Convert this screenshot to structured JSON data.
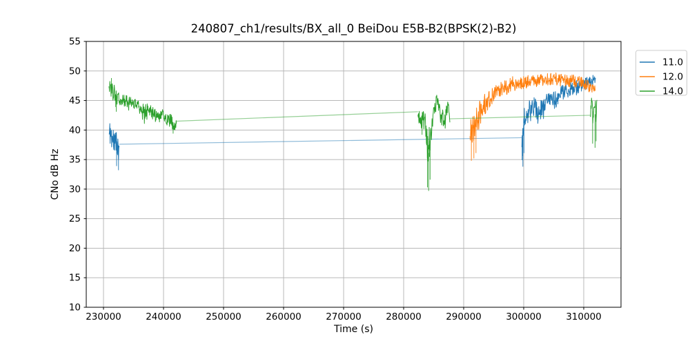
{
  "chart_data": {
    "type": "line",
    "title": "240807_ch1/results/BX_all_0 BeiDou E5B-B2(BPSK(2)-B2)",
    "xlabel": "Time (s)",
    "ylabel": "CNo dB Hz",
    "xlim": [
      227126,
      316207
    ],
    "ylim": [
      10,
      55
    ],
    "xticks": [
      230000,
      240000,
      250000,
      260000,
      270000,
      280000,
      290000,
      300000,
      310000
    ],
    "yticks": [
      10,
      15,
      20,
      25,
      30,
      35,
      40,
      45,
      50,
      55
    ],
    "grid": true,
    "colors": {
      "grid": "#b8b8b8",
      "spine": "#000000",
      "background": "#ffffff",
      "legend_border": "#cccccc"
    },
    "legend": {
      "position": "outside-upper-right",
      "entries": [
        {
          "label": "11.0",
          "color": "#1f77b4"
        },
        {
          "label": "12.0",
          "color": "#ff7f0e"
        },
        {
          "label": "14.0",
          "color": "#2ca02c"
        }
      ]
    },
    "series": [
      {
        "name": "11.0",
        "color": "#1f77b4",
        "segments": [
          {
            "kind": "noisy",
            "seed": 11,
            "points": [
              [
                230950,
                39.2,
                2.2
              ],
              [
                231150,
                39.8,
                2.3
              ],
              [
                231400,
                38.6,
                2.6
              ],
              [
                231700,
                38.2,
                2.8
              ],
              [
                232000,
                37.2,
                3.2
              ],
              [
                232300,
                38.2,
                2.4
              ],
              [
                232550,
                37.2,
                2.6
              ],
              [
                232600,
                37.6,
                0.6
              ]
            ],
            "spikes": [
              [
                232180,
                33.9
              ],
              [
                232500,
                33.2
              ]
            ]
          },
          {
            "kind": "line",
            "opacity": 0.5,
            "points": [
              [
                232600,
                37.6
              ],
              [
                299690,
                38.7
              ]
            ]
          },
          {
            "kind": "noisy",
            "seed": 12,
            "points": [
              [
                299690,
                38.2,
                2.6
              ],
              [
                299900,
                40.0,
                2.6
              ],
              [
                300200,
                42.0,
                2.2
              ],
              [
                300700,
                43.4,
                1.8
              ],
              [
                301300,
                44.3,
                1.6
              ],
              [
                302000,
                43.6,
                1.8
              ],
              [
                302700,
                43.1,
                1.8
              ],
              [
                303500,
                44.6,
                1.5
              ],
              [
                304300,
                45.4,
                1.4
              ],
              [
                305100,
                45.0,
                1.5
              ],
              [
                306000,
                45.9,
                1.4
              ],
              [
                307000,
                46.6,
                1.3
              ],
              [
                308000,
                47.1,
                1.2
              ],
              [
                309000,
                47.4,
                1.2
              ],
              [
                310000,
                47.8,
                1.1
              ],
              [
                311000,
                48.1,
                1.0
              ],
              [
                311600,
                48.4,
                0.9
              ],
              [
                311960,
                48.9,
                0.6
              ]
            ],
            "spikes": [
              [
                299740,
                34.9
              ],
              [
                299860,
                33.8
              ],
              [
                300040,
                36.1
              ]
            ]
          }
        ]
      },
      {
        "name": "12.0",
        "color": "#ff7f0e",
        "segments": [
          {
            "kind": "noisy",
            "seed": 21,
            "points": [
              [
                291050,
                39.3,
                2.6
              ],
              [
                291350,
                40.2,
                2.9
              ],
              [
                291750,
                40.6,
                2.9
              ],
              [
                292300,
                42.0,
                2.4
              ],
              [
                293000,
                43.6,
                2.0
              ],
              [
                293800,
                44.9,
                1.8
              ],
              [
                294800,
                45.9,
                1.6
              ],
              [
                295800,
                46.7,
                1.5
              ],
              [
                296800,
                47.2,
                1.4
              ],
              [
                298200,
                47.8,
                1.3
              ],
              [
                299800,
                48.0,
                1.2
              ],
              [
                301500,
                48.3,
                1.1
              ],
              [
                303500,
                48.5,
                1.1
              ],
              [
                305500,
                48.6,
                1.1
              ],
              [
                307500,
                48.4,
                1.1
              ],
              [
                309000,
                48.2,
                1.1
              ],
              [
                310200,
                47.9,
                1.0
              ],
              [
                311200,
                47.1,
                0.9
              ],
              [
                311900,
                46.9,
                0.7
              ]
            ],
            "spikes": [
              [
                291280,
                34.8
              ],
              [
                291700,
                35.2
              ],
              [
                292050,
                36.1
              ]
            ]
          }
        ]
      },
      {
        "name": "14.0",
        "color": "#2ca02c",
        "segments": [
          {
            "kind": "noisy",
            "seed": 31,
            "points": [
              [
                230900,
                46.9,
                1.4
              ],
              [
                231250,
                47.1,
                1.5
              ],
              [
                231600,
                46.5,
                1.6
              ],
              [
                231950,
                45.5,
                1.8
              ],
              [
                232300,
                45.3,
                1.3
              ],
              [
                233100,
                45.1,
                1.1
              ],
              [
                234000,
                44.9,
                1.0
              ],
              [
                235000,
                44.6,
                1.0
              ],
              [
                235800,
                44.4,
                1.0
              ],
              [
                236400,
                43.5,
                1.2
              ],
              [
                236900,
                43.0,
                1.3
              ],
              [
                237350,
                44.1,
                1.1
              ],
              [
                237900,
                43.2,
                1.1
              ],
              [
                238500,
                42.6,
                1.1
              ],
              [
                239200,
                42.2,
                1.1
              ],
              [
                239900,
                42.7,
                1.0
              ],
              [
                240600,
                42.0,
                1.2
              ],
              [
                241300,
                41.3,
                1.3
              ],
              [
                241800,
                40.7,
                1.0
              ],
              [
                242150,
                41.3,
                0.7
              ]
            ],
            "spikes": [
              [
                231330,
                48.8
              ],
              [
                232120,
                43.1
              ],
              [
                241600,
                39.4
              ]
            ]
          },
          {
            "kind": "line",
            "opacity": 0.5,
            "points": [
              [
                242150,
                41.5
              ],
              [
                282380,
                43.1
              ]
            ]
          },
          {
            "kind": "noisy",
            "seed": 32,
            "points": [
              [
                282380,
                42.9,
                1.2
              ],
              [
                282700,
                42.1,
                1.5
              ],
              [
                283000,
                41.2,
                1.6
              ],
              [
                283300,
                42.1,
                1.4
              ],
              [
                283600,
                41.1,
                2.0
              ],
              [
                283880,
                38.0,
                3.4
              ],
              [
                284120,
                35.8,
                4.0
              ],
              [
                284400,
                38.2,
                3.0
              ],
              [
                284700,
                41.6,
                2.0
              ],
              [
                285100,
                43.6,
                1.5
              ],
              [
                285500,
                45.1,
                1.3
              ],
              [
                285900,
                44.1,
                1.5
              ],
              [
                286300,
                42.1,
                1.6
              ],
              [
                286700,
                41.6,
                1.6
              ],
              [
                287050,
                43.1,
                1.3
              ],
              [
                287400,
                43.9,
                1.2
              ],
              [
                287700,
                41.9,
                1.0
              ]
            ],
            "spikes": [
              [
                283960,
                30.3
              ],
              [
                284160,
                29.7
              ],
              [
                284400,
                31.6
              ],
              [
                283070,
                39.2
              ]
            ]
          },
          {
            "kind": "line",
            "opacity": 0.5,
            "points": [
              [
                287700,
                41.9
              ],
              [
                311080,
                42.5
              ]
            ]
          },
          {
            "kind": "noisy",
            "seed": 33,
            "points": [
              [
                311080,
                42.2,
                1.6
              ],
              [
                311260,
                43.4,
                2.1
              ],
              [
                311450,
                43.1,
                2.9
              ],
              [
                311650,
                43.6,
                2.4
              ],
              [
                311850,
                42.6,
                3.0
              ],
              [
                312050,
                43.1,
                2.2
              ],
              [
                312200,
                44.1,
                1.2
              ]
            ],
            "spikes": [
              [
                311480,
                37.7
              ],
              [
                311880,
                37.0
              ],
              [
                312060,
                38.1
              ]
            ]
          }
        ]
      }
    ]
  }
}
